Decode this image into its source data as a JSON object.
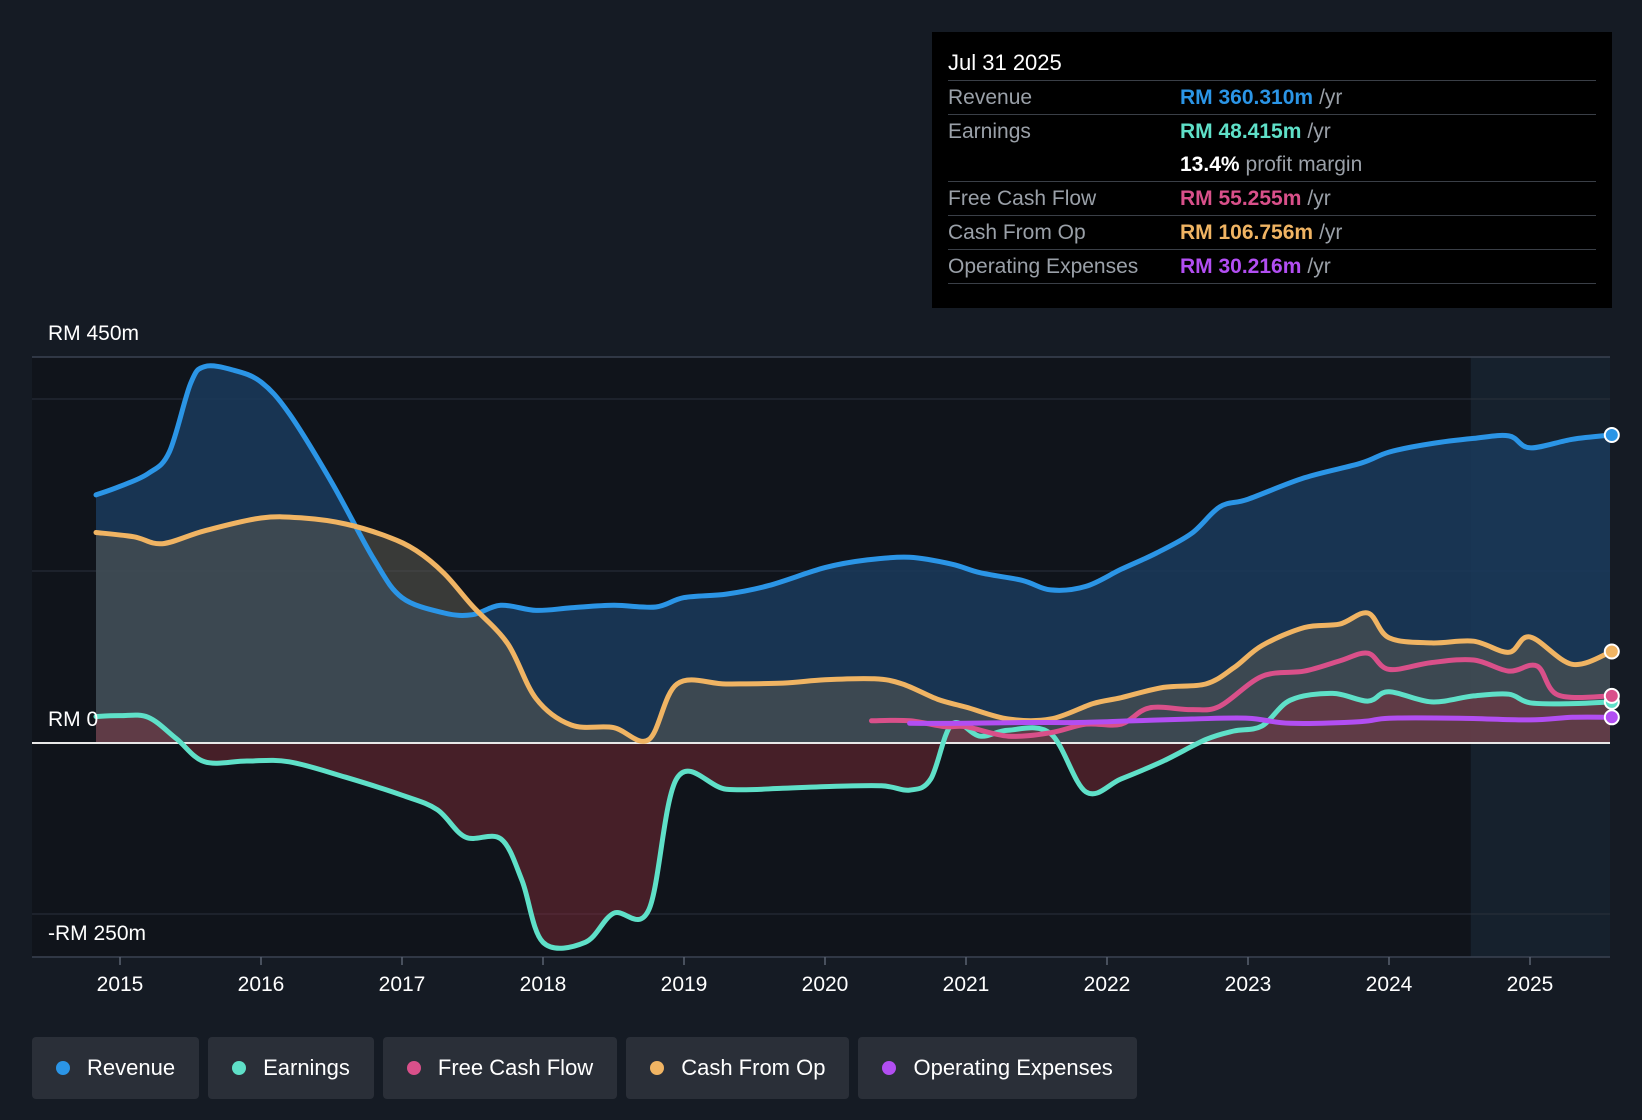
{
  "tooltip": {
    "date": "Jul 31 2025",
    "rows": [
      {
        "label": "Revenue",
        "value": "RM 360.310m",
        "unit": "/yr",
        "color": "#2b95e6"
      },
      {
        "label": "Earnings",
        "value": "RM 48.415m",
        "unit": "/yr",
        "color": "#5fe0c8"
      },
      {
        "label": "",
        "value": "13.4%",
        "unit": "profit margin",
        "color": "#ffffff"
      },
      {
        "label": "Free Cash Flow",
        "value": "RM 55.255m",
        "unit": "/yr",
        "color": "#d9508a"
      },
      {
        "label": "Cash From Op",
        "value": "RM 106.756m",
        "unit": "/yr",
        "color": "#f0b463"
      },
      {
        "label": "Operating Expenses",
        "value": "RM 30.216m",
        "unit": "/yr",
        "color": "#b24ef2"
      }
    ]
  },
  "legend": [
    {
      "label": "Revenue",
      "color": "#2b95e6"
    },
    {
      "label": "Earnings",
      "color": "#5fe0c8"
    },
    {
      "label": "Free Cash Flow",
      "color": "#d9508a"
    },
    {
      "label": "Cash From Op",
      "color": "#f0b463"
    },
    {
      "label": "Operating Expenses",
      "color": "#b24ef2"
    }
  ],
  "chart_data": {
    "type": "area",
    "title": "",
    "y_axis_labels": [
      "RM 450m",
      "RM 0",
      "-RM 250m"
    ],
    "ylim": [
      -250,
      450
    ],
    "xlim": [
      2014.83,
      2025.58
    ],
    "x_ticks": [
      "2015",
      "2016",
      "2017",
      "2018",
      "2019",
      "2020",
      "2021",
      "2022",
      "2023",
      "2024",
      "2025"
    ],
    "forecast_start": 2024.58,
    "series": [
      {
        "name": "Revenue",
        "color": "#2b95e6",
        "fill": true,
        "points": [
          [
            2014.83,
            290
          ],
          [
            2015.0,
            300
          ],
          [
            2015.2,
            315
          ],
          [
            2015.35,
            340
          ],
          [
            2015.5,
            420
          ],
          [
            2015.6,
            440
          ],
          [
            2015.8,
            436
          ],
          [
            2016.0,
            422
          ],
          [
            2016.2,
            385
          ],
          [
            2016.5,
            305
          ],
          [
            2016.8,
            215
          ],
          [
            2017.0,
            170
          ],
          [
            2017.3,
            152
          ],
          [
            2017.5,
            150
          ],
          [
            2017.7,
            161
          ],
          [
            2017.95,
            155
          ],
          [
            2018.2,
            158
          ],
          [
            2018.5,
            161
          ],
          [
            2018.8,
            159
          ],
          [
            2019.0,
            170
          ],
          [
            2019.3,
            174
          ],
          [
            2019.6,
            184
          ],
          [
            2020.0,
            205
          ],
          [
            2020.3,
            214
          ],
          [
            2020.6,
            217
          ],
          [
            2020.9,
            209
          ],
          [
            2021.1,
            199
          ],
          [
            2021.4,
            190
          ],
          [
            2021.6,
            179
          ],
          [
            2021.85,
            183
          ],
          [
            2022.1,
            203
          ],
          [
            2022.35,
            222
          ],
          [
            2022.6,
            245
          ],
          [
            2022.8,
            276
          ],
          [
            2023.0,
            285
          ],
          [
            2023.4,
            310
          ],
          [
            2023.8,
            327
          ],
          [
            2024.0,
            340
          ],
          [
            2024.3,
            350
          ],
          [
            2024.6,
            356
          ],
          [
            2024.85,
            359
          ],
          [
            2025.0,
            345
          ],
          [
            2025.3,
            355
          ],
          [
            2025.58,
            360
          ]
        ]
      },
      {
        "name": "Cash From Op",
        "color": "#f0b463",
        "fill": true,
        "points": [
          [
            2014.83,
            246
          ],
          [
            2015.1,
            241
          ],
          [
            2015.3,
            233
          ],
          [
            2015.6,
            248
          ],
          [
            2016.0,
            263
          ],
          [
            2016.3,
            263
          ],
          [
            2016.6,
            256
          ],
          [
            2016.9,
            241
          ],
          [
            2017.1,
            225
          ],
          [
            2017.3,
            198
          ],
          [
            2017.5,
            160
          ],
          [
            2017.75,
            116
          ],
          [
            2017.95,
            52
          ],
          [
            2018.2,
            21
          ],
          [
            2018.5,
            18
          ],
          [
            2018.75,
            4
          ],
          [
            2018.95,
            69
          ],
          [
            2019.3,
            69
          ],
          [
            2019.7,
            70
          ],
          [
            2020.0,
            74
          ],
          [
            2020.35,
            75
          ],
          [
            2020.55,
            69
          ],
          [
            2020.8,
            51
          ],
          [
            2021.0,
            42
          ],
          [
            2021.3,
            28
          ],
          [
            2021.6,
            28
          ],
          [
            2021.9,
            46
          ],
          [
            2022.1,
            53
          ],
          [
            2022.4,
            65
          ],
          [
            2022.7,
            69
          ],
          [
            2022.9,
            88
          ],
          [
            2023.1,
            114
          ],
          [
            2023.4,
            135
          ],
          [
            2023.65,
            139
          ],
          [
            2023.85,
            152
          ],
          [
            2024.0,
            123
          ],
          [
            2024.3,
            117
          ],
          [
            2024.6,
            119
          ],
          [
            2024.85,
            106
          ],
          [
            2025.0,
            124
          ],
          [
            2025.3,
            92
          ],
          [
            2025.58,
            107
          ]
        ]
      },
      {
        "name": "Earnings",
        "color": "#5fe0c8",
        "fill": true,
        "points": [
          [
            2014.83,
            31
          ],
          [
            2015.0,
            32
          ],
          [
            2015.2,
            30
          ],
          [
            2015.4,
            5
          ],
          [
            2015.6,
            -22
          ],
          [
            2015.9,
            -21
          ],
          [
            2016.2,
            -22
          ],
          [
            2016.6,
            -40
          ],
          [
            2017.0,
            -61
          ],
          [
            2017.25,
            -78
          ],
          [
            2017.45,
            -110
          ],
          [
            2017.7,
            -112
          ],
          [
            2017.85,
            -160
          ],
          [
            2018.0,
            -233
          ],
          [
            2018.3,
            -233
          ],
          [
            2018.5,
            -199
          ],
          [
            2018.75,
            -195
          ],
          [
            2018.95,
            -41
          ],
          [
            2019.3,
            -54
          ],
          [
            2019.7,
            -53
          ],
          [
            2020.0,
            -51
          ],
          [
            2020.4,
            -50
          ],
          [
            2020.6,
            -55
          ],
          [
            2020.75,
            -42
          ],
          [
            2020.9,
            22
          ],
          [
            2021.1,
            8
          ],
          [
            2021.3,
            15
          ],
          [
            2021.6,
            11
          ],
          [
            2021.85,
            -57
          ],
          [
            2022.1,
            -42
          ],
          [
            2022.4,
            -21
          ],
          [
            2022.7,
            4
          ],
          [
            2022.9,
            14
          ],
          [
            2023.1,
            20
          ],
          [
            2023.3,
            50
          ],
          [
            2023.6,
            58
          ],
          [
            2023.85,
            49
          ],
          [
            2024.0,
            60
          ],
          [
            2024.3,
            48
          ],
          [
            2024.6,
            55
          ],
          [
            2024.85,
            57
          ],
          [
            2025.0,
            47
          ],
          [
            2025.3,
            46
          ],
          [
            2025.58,
            48
          ]
        ]
      },
      {
        "name": "Free Cash Flow",
        "color": "#d9508a",
        "fill": false,
        "points": [
          [
            2020.33,
            26
          ],
          [
            2020.6,
            26
          ],
          [
            2020.85,
            19
          ],
          [
            2021.0,
            19
          ],
          [
            2021.3,
            8
          ],
          [
            2021.6,
            12
          ],
          [
            2021.85,
            22
          ],
          [
            2022.1,
            22
          ],
          [
            2022.3,
            41
          ],
          [
            2022.6,
            39
          ],
          [
            2022.8,
            43
          ],
          [
            2023.1,
            78
          ],
          [
            2023.4,
            84
          ],
          [
            2023.65,
            96
          ],
          [
            2023.85,
            105
          ],
          [
            2024.0,
            86
          ],
          [
            2024.3,
            94
          ],
          [
            2024.6,
            97
          ],
          [
            2024.85,
            84
          ],
          [
            2025.05,
            90
          ],
          [
            2025.2,
            56
          ],
          [
            2025.58,
            55
          ]
        ]
      },
      {
        "name": "Operating Expenses",
        "color": "#b24ef2",
        "fill": false,
        "points": [
          [
            2020.6,
            23
          ],
          [
            2021.0,
            23
          ],
          [
            2021.4,
            24
          ],
          [
            2021.8,
            24
          ],
          [
            2022.2,
            26
          ],
          [
            2022.6,
            28
          ],
          [
            2023.0,
            29
          ],
          [
            2023.3,
            23
          ],
          [
            2023.8,
            25
          ],
          [
            2024.0,
            29
          ],
          [
            2024.5,
            29
          ],
          [
            2025.0,
            27
          ],
          [
            2025.3,
            30
          ],
          [
            2025.58,
            30
          ]
        ]
      }
    ]
  }
}
